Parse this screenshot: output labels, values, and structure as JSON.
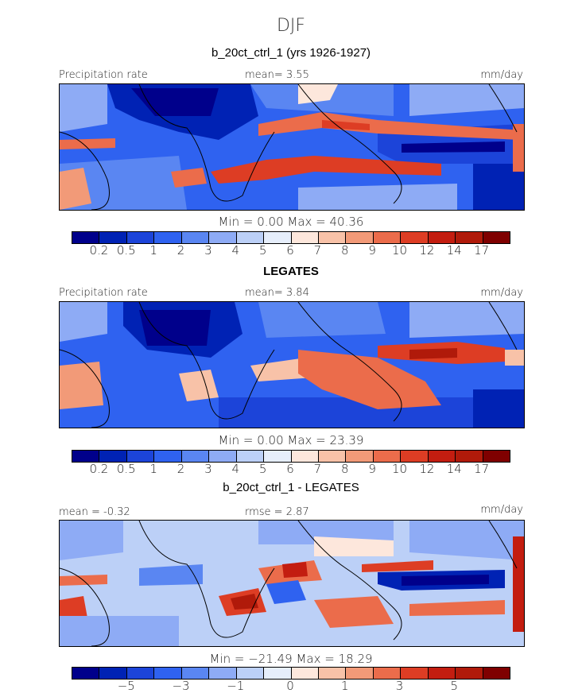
{
  "season": "DJF",
  "colors": [
    "#00008b",
    "#0022b4",
    "#1c44d9",
    "#2f62f0",
    "#5a86f2",
    "#8eabf5",
    "#bcd0f7",
    "#e6eefb",
    "#fde7dc",
    "#f8c2a8",
    "#f29a78",
    "#eb6c4b",
    "#dd3d24",
    "#c31d10",
    "#b01a0a",
    "#7f0000"
  ],
  "panels": [
    {
      "title": "b_20ct_ctrl_1 (yrs 1926-1927)",
      "title_bold": false,
      "left_label": "Precipitation rate",
      "center_label": "mean=   3.55",
      "right_label": "mm/day",
      "minmax": "Min =    0.00 Max =   40.36",
      "ticks": [
        "0.2",
        "0.5",
        "1",
        "2",
        "3",
        "4",
        "5",
        "6",
        "7",
        "8",
        "9",
        "10",
        "12",
        "14",
        "17"
      ]
    },
    {
      "title": "LEGATES",
      "title_bold": true,
      "left_label": "Precipitation rate",
      "center_label": "mean=   3.84",
      "right_label": "mm/day",
      "minmax": "Min =    0.00 Max =   23.39",
      "ticks": [
        "0.2",
        "0.5",
        "1",
        "2",
        "3",
        "4",
        "5",
        "6",
        "7",
        "8",
        "9",
        "10",
        "12",
        "14",
        "17"
      ]
    },
    {
      "title": "b_20ct_ctrl_1 - LEGATES",
      "title_bold": false,
      "left_label": "mean =  -0.32",
      "center_label": "rmse =    2.87",
      "right_label": "mm/day",
      "minmax": "Min = −21.49 Max =   18.29",
      "ticks": [
        "−5",
        "−3",
        "−1",
        "0",
        "1",
        "3",
        "5"
      ]
    }
  ]
}
